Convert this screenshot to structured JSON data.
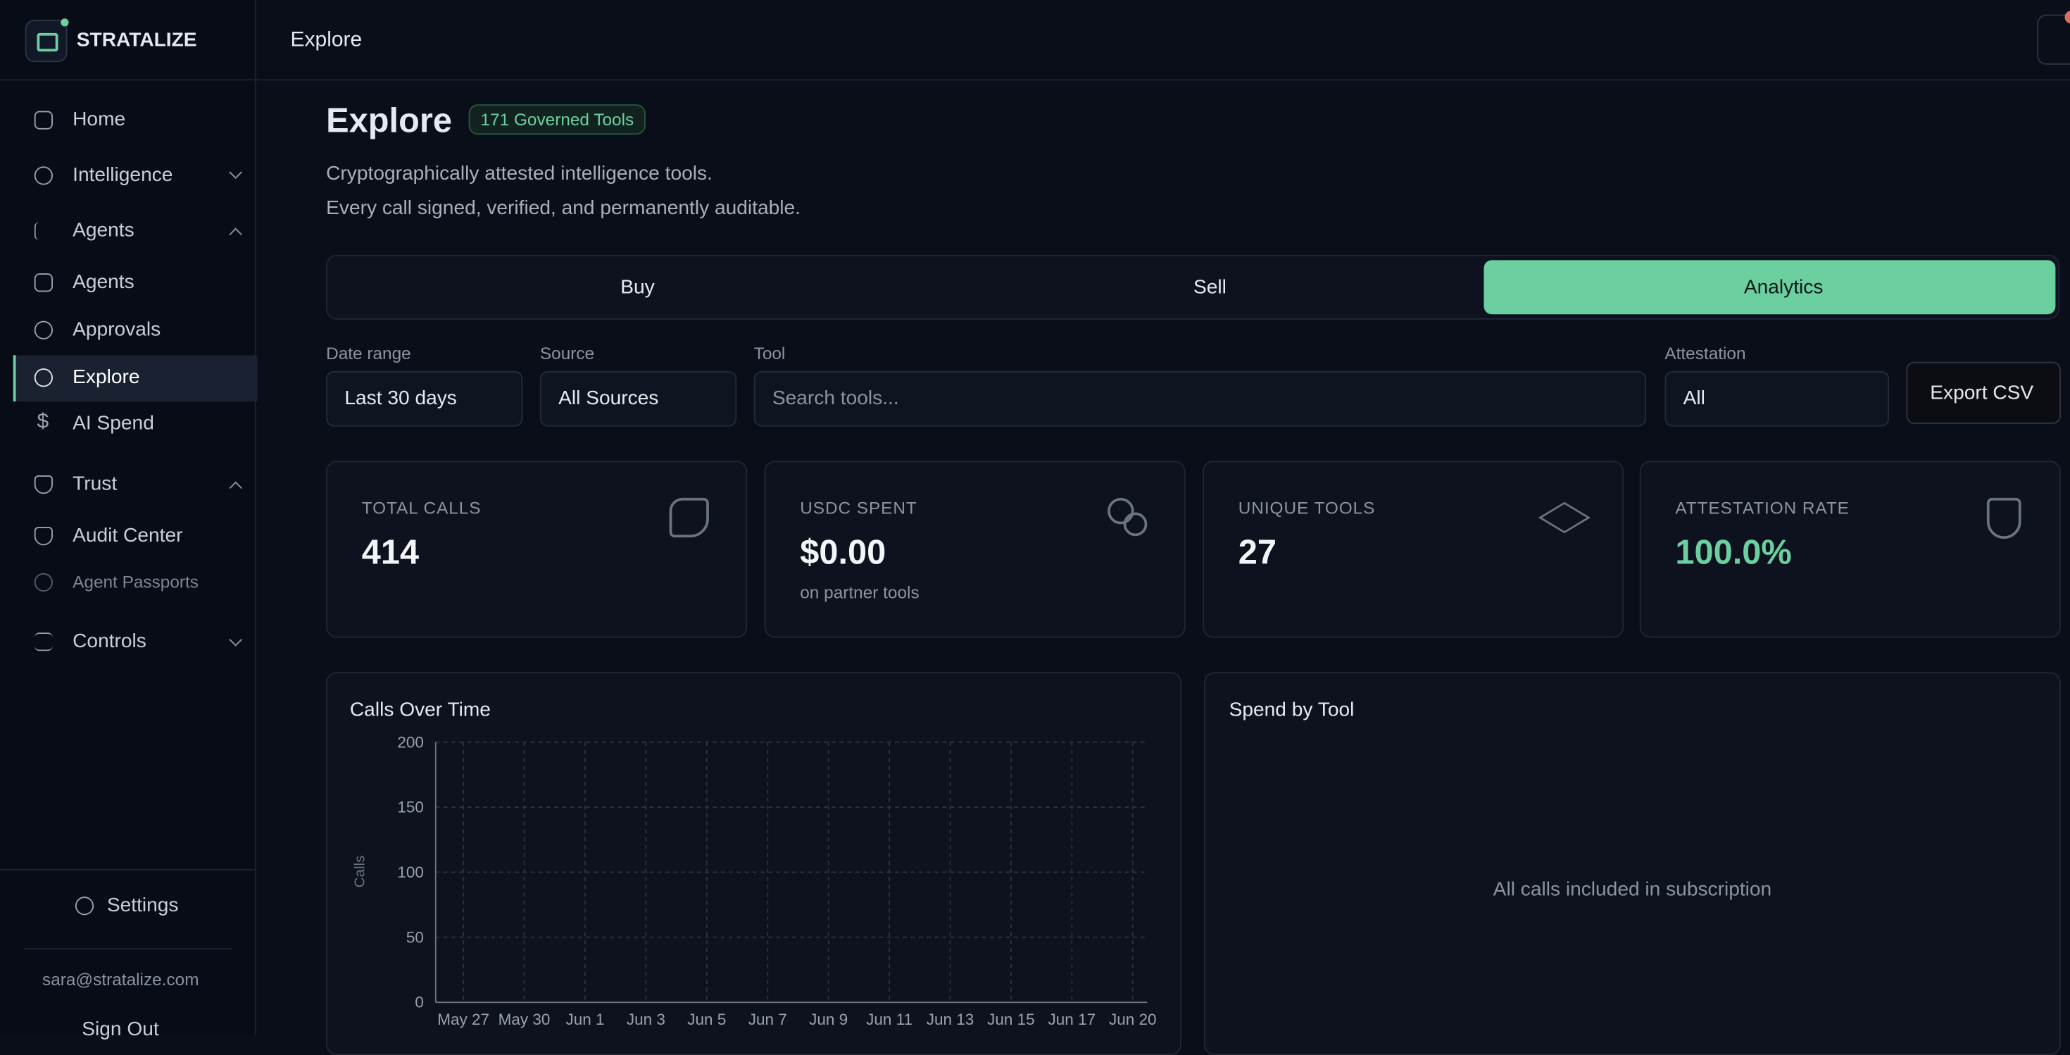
{
  "sidebar": {
    "brand": "STRATALIZE",
    "nav": [
      "Home",
      "Intelligence",
      "Agents",
      "Agents",
      "Approvals",
      "Explore",
      "AI Spend",
      "Trust",
      "Audit Center",
      "Agent Passports",
      "Controls"
    ],
    "settings": "Settings",
    "email": "sara@stratalize.com",
    "sign_out": "Sign Out"
  },
  "header": {
    "title": "Explore"
  },
  "page": {
    "title": "Explore",
    "badge": "171 Governed Tools",
    "description": [
      "Cryptographically attested intelligence tools.",
      "Every call signed, verified, and permanently auditable."
    ]
  },
  "tabs": [
    "Buy",
    "Sell",
    "Analytics"
  ],
  "filters": {
    "date_range": {
      "label": "Date range",
      "value": "Last 30 days"
    },
    "source": {
      "label": "Source",
      "value": "All Sources"
    },
    "tool": {
      "label": "Tool",
      "placeholder": "Search tools..."
    },
    "attestation": {
      "label": "Attestation",
      "value": "All"
    },
    "export": "Export CSV"
  },
  "stats": [
    {
      "label": "TOTAL CALLS",
      "value": "414"
    },
    {
      "label": "USDC SPENT",
      "value": "$0.00",
      "note": "on partner tools"
    },
    {
      "label": "UNIQUE TOOLS",
      "value": "27"
    },
    {
      "label": "ATTESTATION RATE",
      "value": "100.0%"
    }
  ],
  "calls_chart": {
    "title": "Calls Over Time",
    "y_label": "Calls",
    "ylim": [
      0,
      200
    ],
    "yticks": [
      0,
      50,
      100,
      150,
      200
    ],
    "xticks": [
      "May 27",
      "May 30",
      "Jun 1",
      "Jun 3",
      "Jun 5",
      "Jun 7",
      "Jun 9",
      "Jun 11",
      "Jun 13",
      "Jun 15",
      "Jun 17",
      "Jun 20"
    ]
  },
  "spend_chart": {
    "title": "Spend by Tool",
    "empty_message": "All calls included in subscription"
  }
}
